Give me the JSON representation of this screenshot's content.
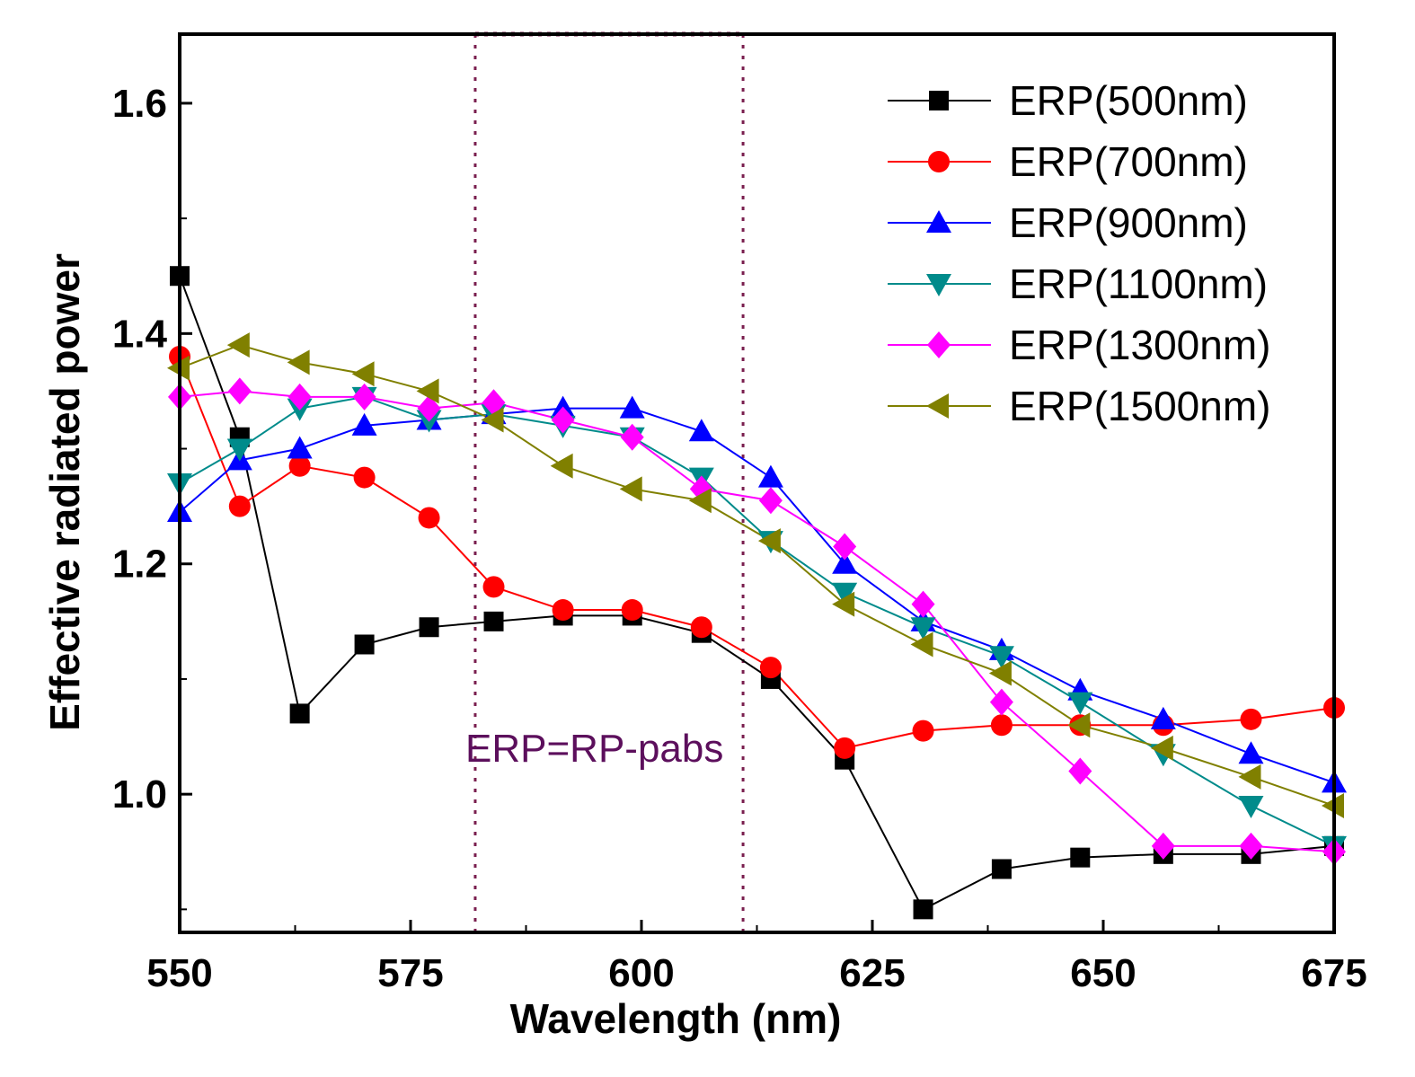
{
  "chart_data": {
    "type": "line",
    "title": "",
    "xlabel": "Wavelength (nm)",
    "ylabel": "Effective radiated power",
    "xlim": [
      550,
      675
    ],
    "ylim": [
      0.88,
      1.66
    ],
    "xticks": [
      550,
      575,
      600,
      625,
      650,
      675
    ],
    "xtick_labels": [
      "550",
      "575",
      "600",
      "625",
      "650",
      "675"
    ],
    "yticks": [
      1.0,
      1.2,
      1.4,
      1.6
    ],
    "ytick_labels": [
      "1.0",
      "1.2",
      "1.4",
      "1.6"
    ],
    "legend_position": "top-right",
    "annotation": "ERP=RP-pabs",
    "vlines": [
      582,
      611
    ],
    "x": [
      550,
      556.5,
      563,
      570,
      577,
      584,
      591.5,
      599,
      606.5,
      614,
      622,
      630.5,
      639,
      647.5,
      656.5,
      666,
      675
    ],
    "series": [
      {
        "name": "ERP(500nm)",
        "color": "#000000",
        "marker": "square",
        "values": [
          1.45,
          1.31,
          1.07,
          1.13,
          1.145,
          1.15,
          1.155,
          1.155,
          1.14,
          1.1,
          1.03,
          0.9,
          0.935,
          0.945,
          0.948,
          0.948,
          0.955
        ]
      },
      {
        "name": "ERP(700nm)",
        "color": "#ff0000",
        "marker": "circle",
        "values": [
          1.38,
          1.25,
          1.285,
          1.275,
          1.24,
          1.18,
          1.16,
          1.16,
          1.145,
          1.11,
          1.04,
          1.055,
          1.06,
          1.06,
          1.06,
          1.065,
          1.075
        ]
      },
      {
        "name": "ERP(900nm)",
        "color": "#0000ff",
        "marker": "triangle-up",
        "values": [
          1.245,
          1.29,
          1.3,
          1.32,
          1.325,
          1.33,
          1.335,
          1.335,
          1.315,
          1.275,
          1.2,
          1.15,
          1.125,
          1.09,
          1.065,
          1.035,
          1.01
        ]
      },
      {
        "name": "ERP(1100nm)",
        "color": "#008b8b",
        "marker": "triangle-down",
        "values": [
          1.27,
          1.3,
          1.335,
          1.345,
          1.325,
          1.33,
          1.32,
          1.31,
          1.275,
          1.22,
          1.175,
          1.145,
          1.12,
          1.08,
          1.035,
          0.99,
          0.955
        ]
      },
      {
        "name": "ERP(1300nm)",
        "color": "#ff00ff",
        "marker": "diamond",
        "values": [
          1.345,
          1.35,
          1.345,
          1.345,
          1.335,
          1.34,
          1.325,
          1.31,
          1.265,
          1.255,
          1.215,
          1.165,
          1.08,
          1.02,
          0.955,
          0.955,
          0.95
        ]
      },
      {
        "name": "ERP(1500nm)",
        "color": "#808000",
        "marker": "triangle-left",
        "values": [
          1.37,
          1.39,
          1.375,
          1.365,
          1.35,
          1.325,
          1.285,
          1.265,
          1.255,
          1.22,
          1.165,
          1.13,
          1.105,
          1.06,
          1.04,
          1.015,
          0.99
        ]
      }
    ]
  }
}
